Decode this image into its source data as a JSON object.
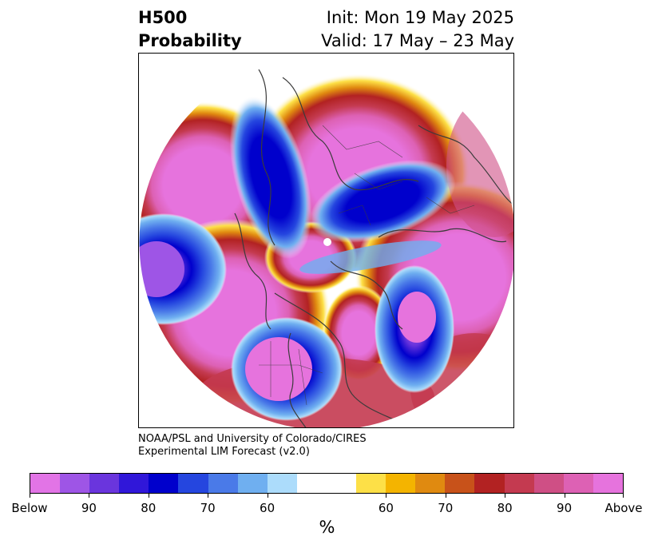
{
  "title": {
    "left_line1": "H500",
    "left_line2": "Probability",
    "right_line1": "Init: Mon 19 May 2025",
    "right_line2": "Valid: 17 May – 23 May"
  },
  "credit": {
    "line1": "NOAA/PSL and University of Colorado/CIRES",
    "line2": "Experimental LIM Forecast (v2.0)"
  },
  "colorbar": {
    "unit": "%",
    "colors": [
      "#e274e6",
      "#9e55e6",
      "#6a35dd",
      "#3017d9",
      "#0000cc",
      "#2546df",
      "#4a7ae8",
      "#6faff0",
      "#acdcfb",
      "#ffffff",
      "#fde047",
      "#f4b400",
      "#e08a10",
      "#c8521a",
      "#b22222",
      "#c43a50",
      "#cf4f85",
      "#dd61b4",
      "#e673dd"
    ],
    "labels": [
      "Below",
      "90",
      "80",
      "70",
      "60",
      "60",
      "70",
      "80",
      "90",
      "Above"
    ]
  },
  "map": {
    "projection": "north-polar-stereographic",
    "field": "500 hPa height probability",
    "high_color": "#e673dd",
    "low_color": "#0000cc"
  }
}
